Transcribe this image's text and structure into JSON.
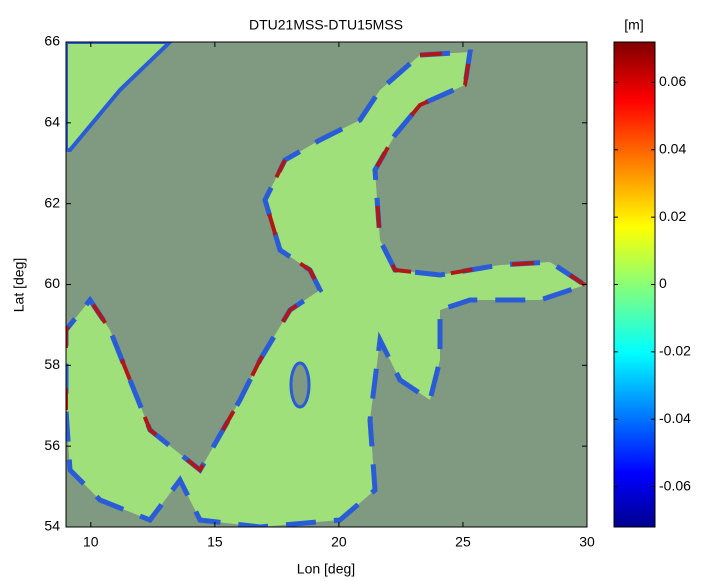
{
  "chart_data": {
    "type": "heatmap",
    "title": "DTU21MSS-DTU15MSS",
    "x_label": "Lon [deg]",
    "y_label": "Lat [deg]",
    "xlim": [
      9,
      30
    ],
    "xticks": [
      10,
      15,
      20,
      25,
      30
    ],
    "ylim": [
      54,
      66
    ],
    "yticks": [
      54,
      56,
      58,
      60,
      62,
      64,
      66
    ],
    "colormap": "jet",
    "colorbar": {
      "label": "[m]",
      "lim": [
        -0.072,
        0.072
      ],
      "ticks": [
        -0.06,
        -0.04,
        -0.02,
        0,
        0.02,
        0.04,
        0.06
      ]
    }
  }
}
